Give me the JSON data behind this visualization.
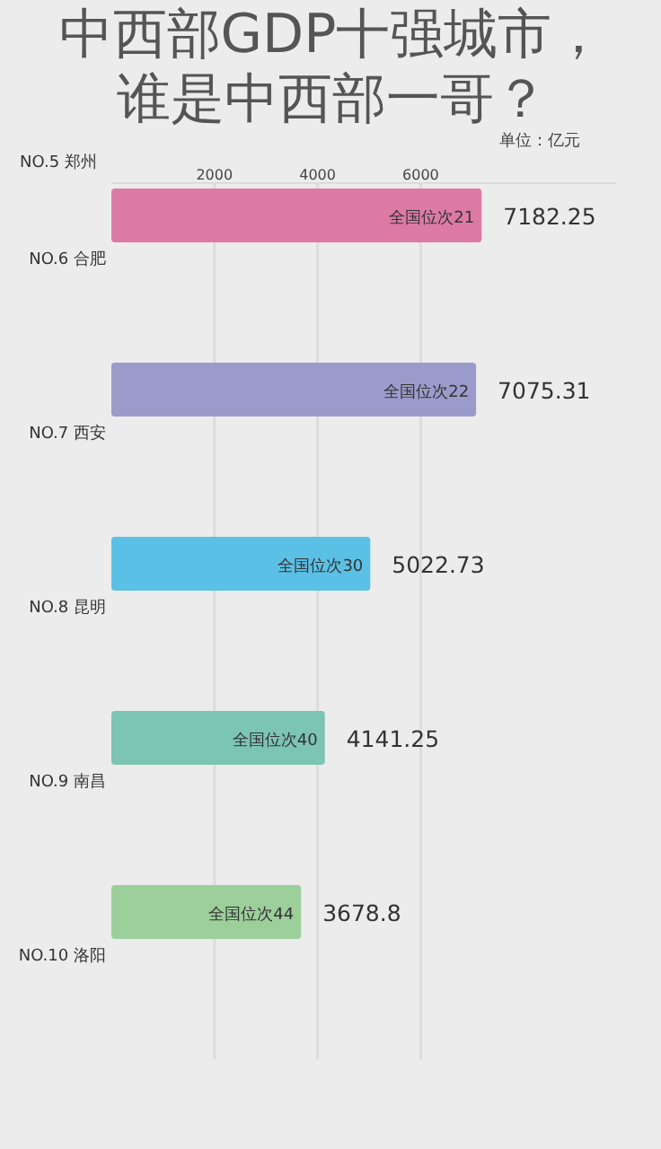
{
  "chart_data": {
    "type": "bar",
    "orientation": "horizontal",
    "title": "中西部GDP十强城市，谁是中西部一哥？",
    "xlabel": "单位：亿元",
    "categories": [
      "NO.6 合肥",
      "NO.7 西安",
      "NO.8 昆明",
      "NO.9 南昌",
      "NO.10 洛阳"
    ],
    "values": [
      7182.25,
      7075.31,
      5022.73,
      4141.25,
      3678.8
    ],
    "colors": [
      "#dc7aa5",
      "#9b9bcb",
      "#5bc0e6",
      "#7cc4b4",
      "#9ccf9a"
    ],
    "xlim": [
      0,
      9800
    ],
    "xticks": [
      2000,
      4000,
      6000
    ],
    "grid": "x",
    "data_labels": true,
    "annotations": [
      "NO.5 郑州",
      "全国位次21",
      "全国位次22",
      "全国位次30",
      "全国位次40",
      "全国位次44"
    ]
  }
}
